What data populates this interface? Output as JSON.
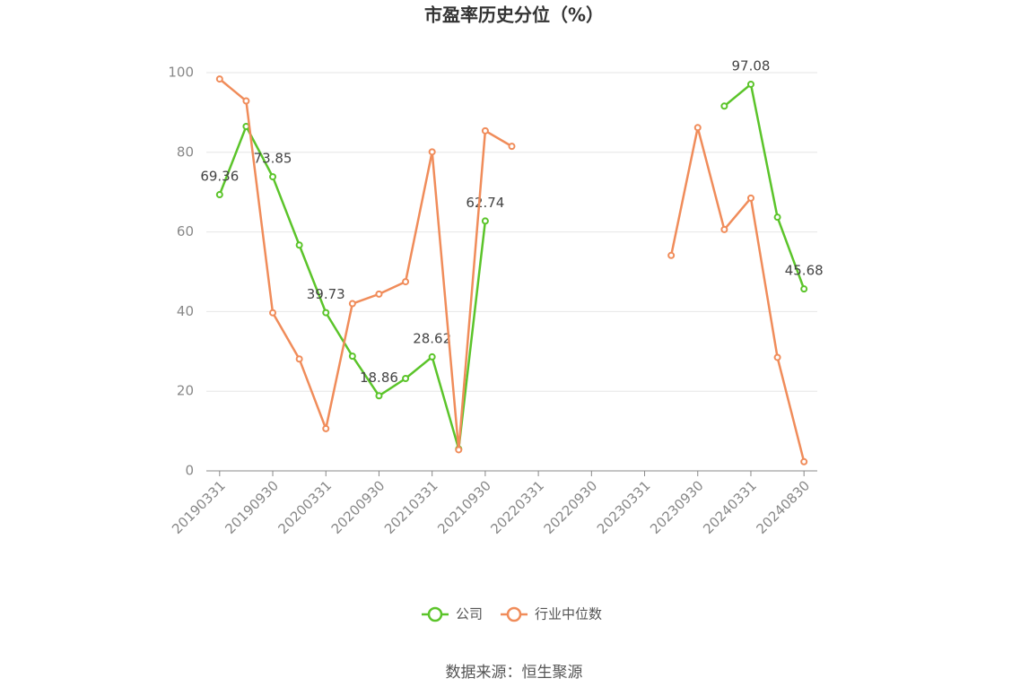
{
  "chart_data": {
    "type": "line",
    "title": "市盈率历史分位（%）",
    "source": "数据来源：恒生聚源",
    "categories": [
      "20190331",
      null,
      "20190930",
      null,
      "20200331",
      null,
      "20200930",
      null,
      "20210331",
      null,
      "20210930",
      null,
      "20220331",
      null,
      "20220930",
      null,
      "20230331",
      null,
      "20230930",
      null,
      "20240331",
      null,
      "20240830"
    ],
    "series": [
      {
        "name": "公司",
        "color": "#5bc42a",
        "values": [
          69.36,
          86.5,
          73.85,
          56.7,
          39.73,
          28.8,
          18.86,
          23.2,
          28.62,
          5.5,
          62.74,
          null,
          null,
          null,
          null,
          null,
          null,
          null,
          null,
          91.6,
          97.08,
          63.7,
          45.68
        ],
        "value_labels": [
          "69.36",
          null,
          "73.85",
          null,
          "39.73",
          null,
          "18.86",
          null,
          "28.62",
          null,
          "62.74",
          null,
          null,
          null,
          null,
          null,
          null,
          null,
          null,
          null,
          "97.08",
          null,
          "45.68"
        ]
      },
      {
        "name": "行业中位数",
        "color": "#f08c5a",
        "values": [
          98.4,
          92.9,
          39.7,
          28.1,
          10.6,
          42.0,
          44.4,
          47.5,
          80.1,
          5.3,
          85.4,
          81.5,
          null,
          null,
          null,
          null,
          null,
          54.1,
          86.2,
          60.6,
          68.5,
          28.5,
          2.3
        ]
      }
    ],
    "ylim": [
      0,
      100
    ],
    "yticks": [
      0,
      20,
      40,
      60,
      80,
      100
    ],
    "grid": true,
    "legend": "bottom"
  }
}
